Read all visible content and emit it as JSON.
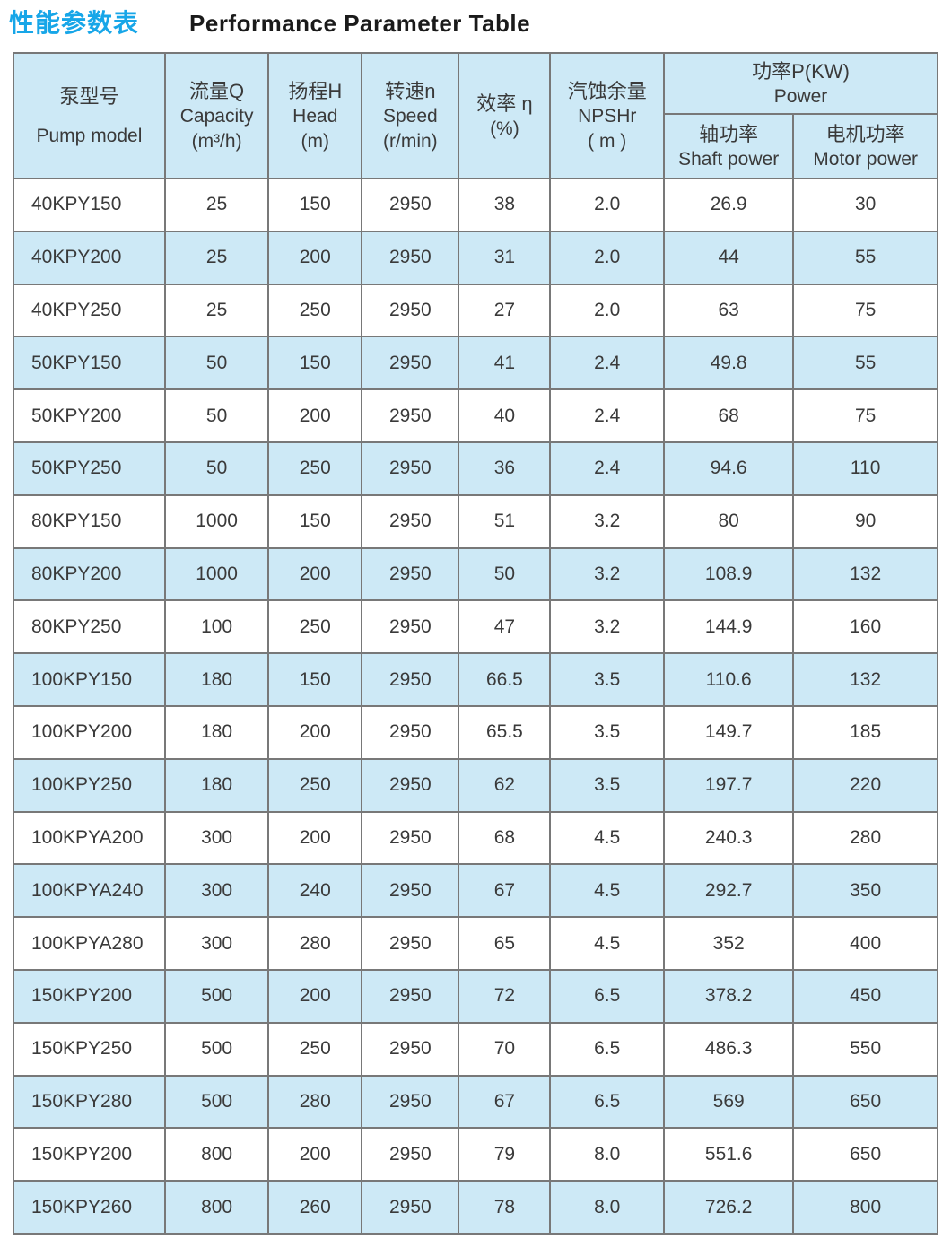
{
  "page_title": {
    "zh": "性能参数表",
    "en": "Performance Parameter Table"
  },
  "colors": {
    "title_accent": "#17a6e8",
    "header_background": "#cde9f6",
    "row_stripe": "#cde9f6",
    "table_border": "#787878",
    "text": "#3a3a3a"
  },
  "table": {
    "headers": {
      "pump_model": {
        "zh": "泵型号",
        "en": "Pump model"
      },
      "capacity": {
        "zh": "流量Q",
        "en": "Capacity",
        "unit": "(m³/h)"
      },
      "head": {
        "zh": "扬程H",
        "en": "Head",
        "unit": "(m)"
      },
      "speed": {
        "zh": "转速n",
        "en": "Speed",
        "unit": "(r/min)"
      },
      "efficiency": {
        "zh": "效率 η",
        "unit": "(%)"
      },
      "npshr": {
        "zh": "汽蚀余量",
        "en": "NPSHr",
        "unit": "( m )"
      },
      "power": {
        "zh": "功率P(KW)",
        "en": "Power"
      },
      "shaft_power": {
        "zh": "轴功率",
        "en": "Shaft power"
      },
      "motor_power": {
        "zh": "电机功率",
        "en": "Motor power"
      }
    },
    "rows": [
      [
        "40KPY150",
        "25",
        "150",
        "2950",
        "38",
        "2.0",
        "26.9",
        "30"
      ],
      [
        "40KPY200",
        "25",
        "200",
        "2950",
        "31",
        "2.0",
        "44",
        "55"
      ],
      [
        "40KPY250",
        "25",
        "250",
        "2950",
        "27",
        "2.0",
        "63",
        "75"
      ],
      [
        "50KPY150",
        "50",
        "150",
        "2950",
        "41",
        "2.4",
        "49.8",
        "55"
      ],
      [
        "50KPY200",
        "50",
        "200",
        "2950",
        "40",
        "2.4",
        "68",
        "75"
      ],
      [
        "50KPY250",
        "50",
        "250",
        "2950",
        "36",
        "2.4",
        "94.6",
        "110"
      ],
      [
        "80KPY150",
        "1000",
        "150",
        "2950",
        "51",
        "3.2",
        "80",
        "90"
      ],
      [
        "80KPY200",
        "1000",
        "200",
        "2950",
        "50",
        "3.2",
        "108.9",
        "132"
      ],
      [
        "80KPY250",
        "100",
        "250",
        "2950",
        "47",
        "3.2",
        "144.9",
        "160"
      ],
      [
        "100KPY150",
        "180",
        "150",
        "2950",
        "66.5",
        "3.5",
        "110.6",
        "132"
      ],
      [
        "100KPY200",
        "180",
        "200",
        "2950",
        "65.5",
        "3.5",
        "149.7",
        "185"
      ],
      [
        "100KPY250",
        "180",
        "250",
        "2950",
        "62",
        "3.5",
        "197.7",
        "220"
      ],
      [
        "100KPYA200",
        "300",
        "200",
        "2950",
        "68",
        "4.5",
        "240.3",
        "280"
      ],
      [
        "100KPYA240",
        "300",
        "240",
        "2950",
        "67",
        "4.5",
        "292.7",
        "350"
      ],
      [
        "100KPYA280",
        "300",
        "280",
        "2950",
        "65",
        "4.5",
        "352",
        "400"
      ],
      [
        "150KPY200",
        "500",
        "200",
        "2950",
        "72",
        "6.5",
        "378.2",
        "450"
      ],
      [
        "150KPY250",
        "500",
        "250",
        "2950",
        "70",
        "6.5",
        "486.3",
        "550"
      ],
      [
        "150KPY280",
        "500",
        "280",
        "2950",
        "67",
        "6.5",
        "569",
        "650"
      ],
      [
        "150KPY200",
        "800",
        "200",
        "2950",
        "79",
        "8.0",
        "551.6",
        "650"
      ],
      [
        "150KPY260",
        "800",
        "260",
        "2950",
        "78",
        "8.0",
        "726.2",
        "800"
      ]
    ]
  }
}
